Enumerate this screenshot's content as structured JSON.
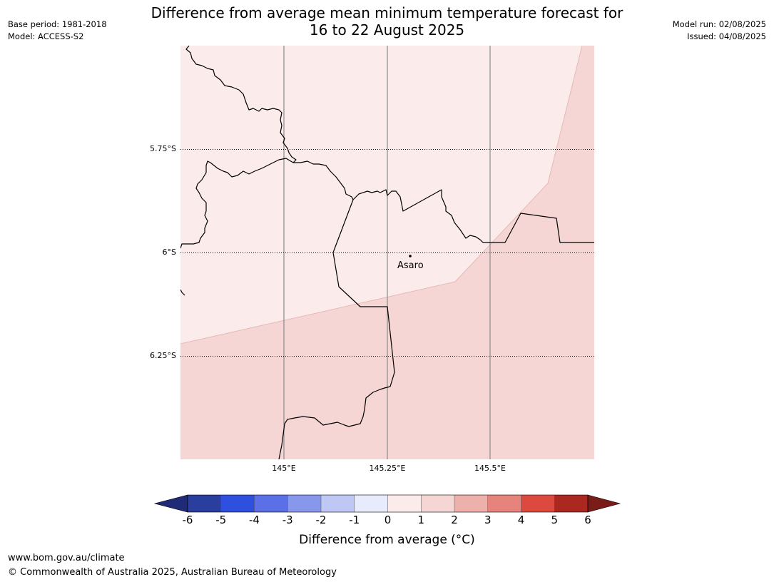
{
  "title_line1": "Difference from average mean minimum temperature forecast for",
  "title_line2": "16 to 22 August 2025",
  "meta_left": {
    "base_period": "Base period: 1981-2018",
    "model": "Model: ACCESS-S2"
  },
  "meta_right": {
    "model_run": "Model run: 02/08/2025",
    "issued": "Issued: 04/08/2025"
  },
  "map": {
    "lat_labels": [
      "5.75°S",
      "6°S",
      "6.25°S"
    ],
    "lon_labels": [
      "145°E",
      "145.25°E",
      "145.5°E"
    ],
    "place": {
      "name": "Asaro",
      "lat": -6.01,
      "lon": 145.3
    },
    "regions": [
      {
        "category": "0 to 1",
        "color": "#fbeceb"
      },
      {
        "category": "1 to 2",
        "color": "#f5d6d4"
      }
    ]
  },
  "colorbar": {
    "ticks": [
      "-6",
      "-5",
      "-4",
      "-3",
      "-2",
      "-1",
      "0",
      "1",
      "2",
      "3",
      "4",
      "5",
      "6"
    ],
    "colors": [
      "#2a3e9e",
      "#2f4fde",
      "#5b70e6",
      "#8797ec",
      "#bfc7f4",
      "#e8ebfb",
      "#fbeceb",
      "#f5d6d4",
      "#eeb0aa",
      "#e5837c",
      "#dc4a3f",
      "#ab2820"
    ],
    "under_color": "#1f2b78",
    "over_color": "#7a1c18",
    "label": "Difference from average ($^\\circ$C)",
    "label_display": "Difference from average (°C)"
  },
  "footer": {
    "url": "www.bom.gov.au/climate",
    "copyright": "© Commonwealth of Australia 2025, Australian Bureau of Meteorology"
  }
}
